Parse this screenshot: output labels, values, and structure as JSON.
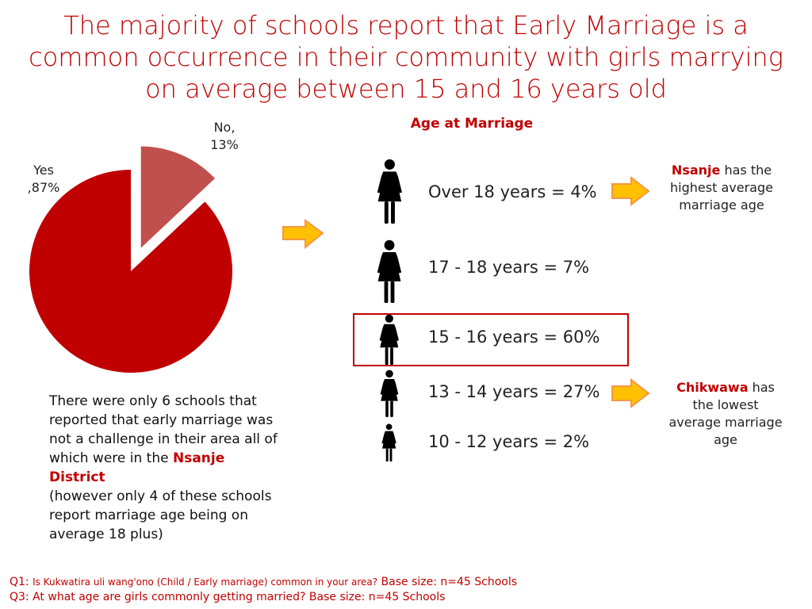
{
  "title": "The majority of schools report that Early Marriage is a common occurrence in their community with girls marrying on average between 15 and 16 years old",
  "chart_data": {
    "type": "pie",
    "categories": [
      "Yes",
      "No"
    ],
    "values": [
      87,
      13
    ],
    "labels": [
      "Yes ,87%",
      "No, 13%"
    ],
    "colors": [
      "#C00000",
      "#C0504D"
    ],
    "exploded": "No"
  },
  "pie_labels": {
    "yes_line1": "Yes",
    "yes_line2": ",87%",
    "no_line1": "No,",
    "no_line2": "13%"
  },
  "age_heading": "Age at Marriage",
  "ages": [
    {
      "label": "Over 18 years = 4%"
    },
    {
      "label": "17 - 18 years = 7%"
    },
    {
      "label": "15 - 16 years = 60%"
    },
    {
      "label": "13 - 14 years = 27%"
    },
    {
      "label": "10 - 12 years = 2%"
    }
  ],
  "notes": {
    "nsanje_name": "Nsanje",
    "nsanje_rest": " has the highest  average marriage age",
    "chikwawa_name": "Chikwawa",
    "chikwawa_rest": " has the lowest average marriage age"
  },
  "paragraph": {
    "part1": "There were only 6 schools that reported that early marriage was not a challenge in their area all of which were in the ",
    "highlight": "Nsanje District",
    "part2": "(however only 4 of these schools report marriage age being on average 18 plus)"
  },
  "footnotes": {
    "q1_prefix": "Q1: ",
    "q1_question": "Is Kukwatira uli wang'ono (Child / Early marriage) common in your area?",
    "q1_base": "  Base size: n=45 Schools",
    "q3": "Q3: At what age are girls commonly getting married? Base size: n=45 Schools"
  },
  "icons": {
    "arrow": "orange-right-arrow",
    "figure": "woman-figure-icon"
  }
}
